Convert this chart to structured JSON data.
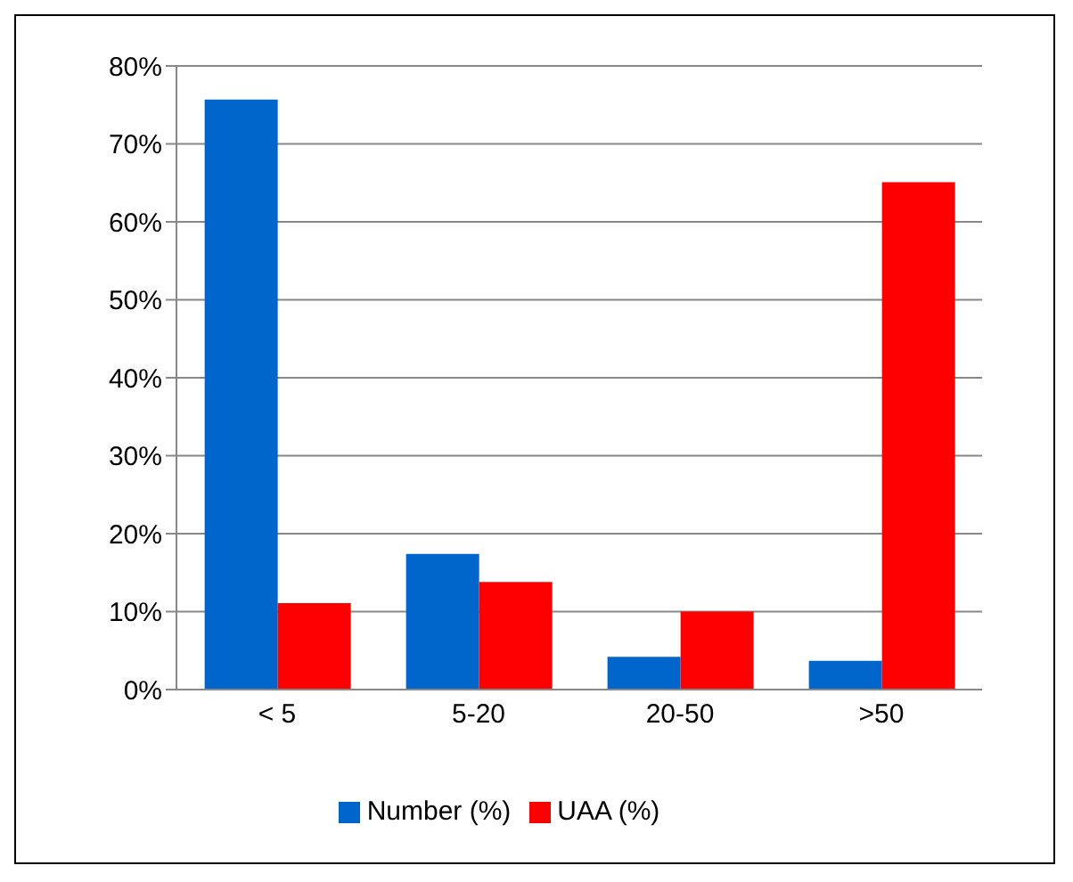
{
  "chart_data": {
    "type": "bar",
    "categories": [
      "< 5",
      "5-20",
      "20-50",
      ">50"
    ],
    "series": [
      {
        "name": "Number (%)",
        "color": "#0066cc",
        "values": [
          75.7,
          17.4,
          4.2,
          3.7
        ]
      },
      {
        "name": "UAA (%)",
        "color": "#ff0000",
        "values": [
          11.1,
          13.8,
          10.0,
          65.1
        ]
      }
    ],
    "ylim": [
      0,
      80
    ],
    "yticks": [
      {
        "value": 0,
        "label": "0%"
      },
      {
        "value": 10,
        "label": "10%"
      },
      {
        "value": 20,
        "label": "20%"
      },
      {
        "value": 30,
        "label": "30%"
      },
      {
        "value": 40,
        "label": "40%"
      },
      {
        "value": 50,
        "label": "50%"
      },
      {
        "value": 60,
        "label": "60%"
      },
      {
        "value": 70,
        "label": "70%"
      },
      {
        "value": 80,
        "label": "80%"
      }
    ],
    "grid": "y",
    "legend": "bottom"
  }
}
